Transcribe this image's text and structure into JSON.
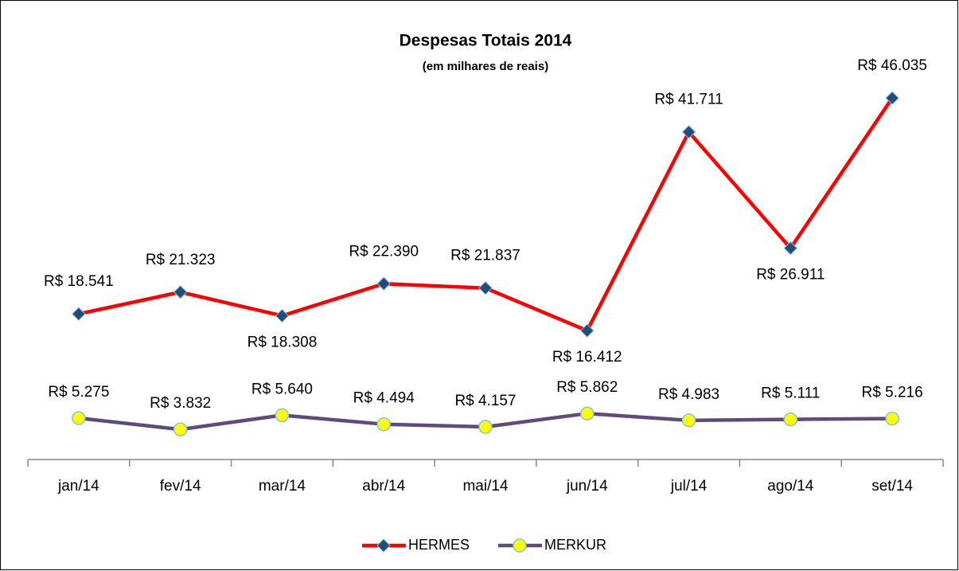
{
  "chart_data": {
    "type": "line",
    "title": "Despesas Totais 2014",
    "subtitle": "(em milhares de reais)",
    "categories": [
      "jan/14",
      "fev/14",
      "mar/14",
      "abr/14",
      "mai/14",
      "jun/14",
      "jul/14",
      "ago/14",
      "set/14"
    ],
    "series": [
      {
        "name": "HERMES",
        "color": "#ff0000",
        "marker_color": "#1f4e79",
        "values": [
          18541,
          21323,
          18308,
          22390,
          21837,
          16412,
          41711,
          26911,
          46035
        ],
        "value_labels": [
          "R$ 18.541",
          "R$ 21.323",
          "R$ 18.308",
          "R$ 22.390",
          "R$ 21.837",
          "R$ 16.412",
          "R$ 41.711",
          "R$ 26.911",
          "R$ 46.035"
        ]
      },
      {
        "name": "MERKUR",
        "color": "#604a7b",
        "marker_color": "#ffff00",
        "values": [
          5275,
          3832,
          5640,
          4494,
          4157,
          5862,
          4983,
          5111,
          5216
        ],
        "value_labels": [
          "R$ 5.275",
          "R$ 3.832",
          "R$ 5.640",
          "R$ 4.494",
          "R$ 4.157",
          "R$ 5.862",
          "R$ 4.983",
          "R$ 5.111",
          "R$ 5.216"
        ]
      }
    ],
    "ylim": [
      0,
      50000
    ],
    "legend": "bottom"
  }
}
